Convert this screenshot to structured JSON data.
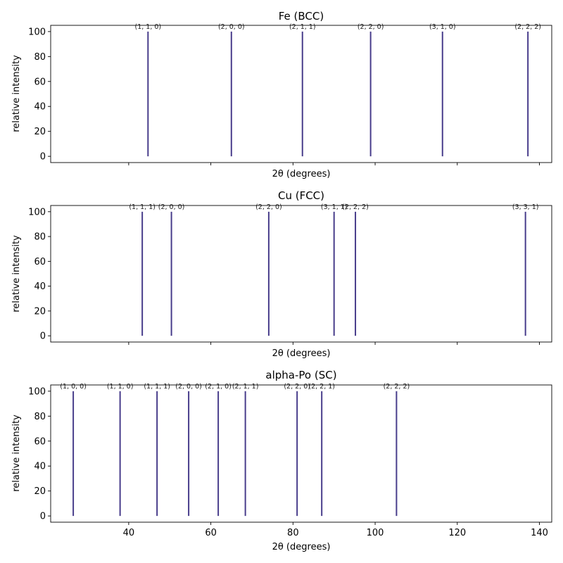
{
  "chart_data": [
    {
      "type": "bar",
      "title": "Fe (BCC)",
      "xlabel": "2θ (degrees)",
      "ylabel": "relative intensity",
      "xlim": [
        21,
        143
      ],
      "ylim": [
        -5,
        105
      ],
      "yticks": [
        0,
        20,
        40,
        60,
        80,
        100
      ],
      "xticks": [
        40,
        60,
        80,
        100,
        120,
        140
      ],
      "show_xticklabels": false,
      "color": "#483d8b",
      "peaks": [
        {
          "x": 44.7,
          "y": 100,
          "label": "(1, 1, 0)"
        },
        {
          "x": 65.0,
          "y": 100,
          "label": "(2, 0, 0)"
        },
        {
          "x": 82.3,
          "y": 100,
          "label": "(2, 1, 1)"
        },
        {
          "x": 98.9,
          "y": 100,
          "label": "(2, 2, 0)"
        },
        {
          "x": 116.4,
          "y": 100,
          "label": "(3, 1, 0)"
        },
        {
          "x": 137.2,
          "y": 100,
          "label": "(2, 2, 2)"
        }
      ]
    },
    {
      "type": "bar",
      "title": "Cu (FCC)",
      "xlabel": "2θ (degrees)",
      "ylabel": "relative intensity",
      "xlim": [
        21,
        143
      ],
      "ylim": [
        -5,
        105
      ],
      "yticks": [
        0,
        20,
        40,
        60,
        80,
        100
      ],
      "xticks": [
        40,
        60,
        80,
        100,
        120,
        140
      ],
      "show_xticklabels": false,
      "color": "#483d8b",
      "peaks": [
        {
          "x": 43.3,
          "y": 100,
          "label": "(1, 1, 1)"
        },
        {
          "x": 50.4,
          "y": 100,
          "label": "(2, 0, 0)"
        },
        {
          "x": 74.1,
          "y": 100,
          "label": "(2, 2, 0)"
        },
        {
          "x": 90.0,
          "y": 100,
          "label": "(3, 1, 1)"
        },
        {
          "x": 95.2,
          "y": 100,
          "label": "(2, 2, 2)"
        },
        {
          "x": 136.6,
          "y": 100,
          "label": "(3, 3, 1)"
        }
      ]
    },
    {
      "type": "bar",
      "title": "alpha-Po (SC)",
      "xlabel": "2θ (degrees)",
      "ylabel": "relative intensity",
      "xlim": [
        21,
        143
      ],
      "ylim": [
        -5,
        105
      ],
      "yticks": [
        0,
        20,
        40,
        60,
        80,
        100
      ],
      "xticks": [
        40,
        60,
        80,
        100,
        120,
        140
      ],
      "show_xticklabels": true,
      "color": "#483d8b",
      "peaks": [
        {
          "x": 26.5,
          "y": 100,
          "label": "(1, 0, 0)"
        },
        {
          "x": 37.9,
          "y": 100,
          "label": "(1, 1, 0)"
        },
        {
          "x": 46.9,
          "y": 100,
          "label": "(1, 1, 1)"
        },
        {
          "x": 54.6,
          "y": 100,
          "label": "(2, 0, 0)"
        },
        {
          "x": 61.8,
          "y": 100,
          "label": "(2, 1, 0)"
        },
        {
          "x": 68.4,
          "y": 100,
          "label": "(2, 1, 1)"
        },
        {
          "x": 81.0,
          "y": 100,
          "label": "(2, 2, 0)"
        },
        {
          "x": 87.0,
          "y": 100,
          "label": "(2, 2, 1)"
        },
        {
          "x": 105.2,
          "y": 100,
          "label": "(2, 2, 2)"
        }
      ]
    }
  ]
}
